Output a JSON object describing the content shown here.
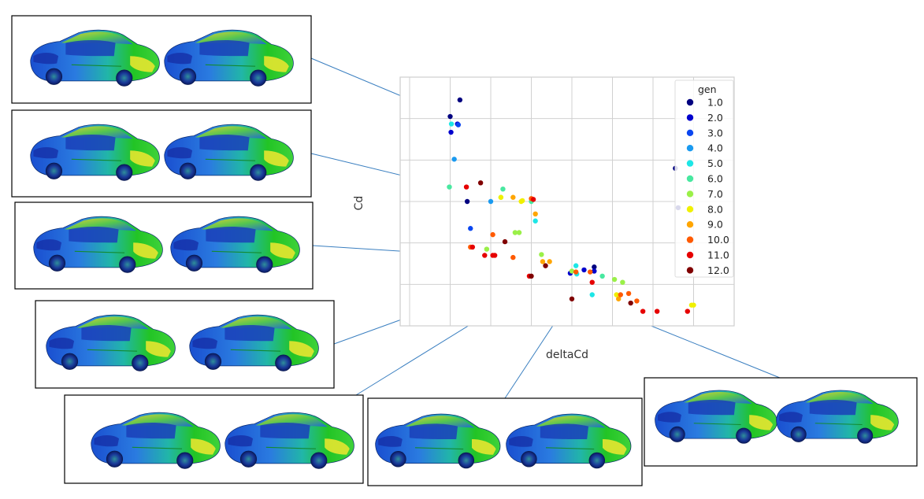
{
  "chart_data": {
    "type": "scatter",
    "title": "",
    "xlabel": "deltaCd",
    "ylabel": "Cd",
    "grid": true,
    "xlim": [
      0,
      8
    ],
    "ylim": [
      0,
      6
    ],
    "xticks_labeled": false,
    "yticks_labeled": false,
    "legend": {
      "title": "gen",
      "placement": "top-right",
      "entries": [
        {
          "label": "1.0",
          "color": "#000080"
        },
        {
          "label": "2.0",
          "color": "#0000cd"
        },
        {
          "label": "3.0",
          "color": "#0a46f0"
        },
        {
          "label": "4.0",
          "color": "#1a9af0"
        },
        {
          "label": "5.0",
          "color": "#1de6e6"
        },
        {
          "label": "6.0",
          "color": "#48e8a0"
        },
        {
          "label": "7.0",
          "color": "#9af048"
        },
        {
          "label": "8.0",
          "color": "#f0f000"
        },
        {
          "label": "9.0",
          "color": "#ffa500"
        },
        {
          "label": "10.0",
          "color": "#ff5a00"
        },
        {
          "label": "11.0",
          "color": "#e60000"
        },
        {
          "label": "12.0",
          "color": "#800000"
        }
      ]
    },
    "series": [
      {
        "name": "1.0",
        "points": [
          [
            1.24,
            5.45
          ],
          [
            1.0,
            5.05
          ],
          [
            6.55,
            3.8
          ],
          [
            6.62,
            2.85
          ],
          [
            1.42,
            3.0
          ],
          [
            4.55,
            1.42
          ]
        ]
      },
      {
        "name": "2.0",
        "points": [
          [
            1.18,
            4.87
          ],
          [
            1.02,
            4.67
          ],
          [
            3.96,
            1.27
          ],
          [
            4.3,
            1.35
          ],
          [
            4.55,
            1.32
          ]
        ]
      },
      {
        "name": "3.0",
        "points": [
          [
            1.2,
            4.85
          ],
          [
            1.5,
            2.35
          ]
        ]
      },
      {
        "name": "4.0",
        "points": [
          [
            1.1,
            4.02
          ],
          [
            2.0,
            3.0
          ]
        ]
      },
      {
        "name": "5.0",
        "points": [
          [
            1.03,
            4.87
          ],
          [
            3.1,
            2.53
          ],
          [
            4.1,
            1.45
          ],
          [
            4.12,
            1.25
          ],
          [
            4.5,
            0.75
          ]
        ]
      },
      {
        "name": "6.0",
        "points": [
          [
            0.98,
            3.35
          ],
          [
            2.3,
            3.3
          ],
          [
            3.0,
            3.0
          ],
          [
            4.75,
            1.2
          ]
        ]
      },
      {
        "name": "7.0",
        "points": [
          [
            2.25,
            3.1
          ],
          [
            2.7,
            2.25
          ],
          [
            1.9,
            1.85
          ],
          [
            2.6,
            2.25
          ],
          [
            3.25,
            1.72
          ],
          [
            4.0,
            1.32
          ],
          [
            5.05,
            1.12
          ],
          [
            5.25,
            1.05
          ]
        ]
      },
      {
        "name": "8.0",
        "points": [
          [
            2.25,
            3.1
          ],
          [
            2.75,
            3.0
          ],
          [
            2.78,
            3.02
          ],
          [
            5.1,
            0.75
          ],
          [
            6.95,
            0.5
          ],
          [
            7.0,
            0.5
          ]
        ]
      },
      {
        "name": "9.0",
        "points": [
          [
            2.55,
            3.1
          ],
          [
            3.1,
            2.7
          ],
          [
            3.45,
            1.55
          ],
          [
            3.28,
            1.55
          ],
          [
            5.15,
            0.65
          ]
        ]
      },
      {
        "name": "10.0",
        "points": [
          [
            3.0,
            3.07
          ],
          [
            2.05,
            2.2
          ],
          [
            1.5,
            1.9
          ],
          [
            2.55,
            1.65
          ],
          [
            4.1,
            1.3
          ],
          [
            4.45,
            1.3
          ],
          [
            5.2,
            0.75
          ],
          [
            5.4,
            0.78
          ],
          [
            5.6,
            0.6
          ]
        ]
      },
      {
        "name": "11.0",
        "points": [
          [
            3.05,
            3.05
          ],
          [
            1.4,
            3.35
          ],
          [
            1.55,
            1.9
          ],
          [
            2.05,
            1.7
          ],
          [
            1.85,
            1.7
          ],
          [
            2.1,
            1.7
          ],
          [
            2.95,
            1.2
          ],
          [
            4.5,
            1.05
          ],
          [
            5.75,
            0.35
          ],
          [
            6.1,
            0.35
          ],
          [
            6.85,
            0.35
          ]
        ]
      },
      {
        "name": "12.0",
        "points": [
          [
            1.75,
            3.45
          ],
          [
            3.35,
            1.45
          ],
          [
            2.35,
            2.03
          ],
          [
            3.0,
            1.2
          ],
          [
            4.0,
            0.65
          ],
          [
            5.45,
            0.55
          ]
        ]
      }
    ],
    "callouts": [
      {
        "panel": 0,
        "point": [
          1.0,
          5.05
        ]
      },
      {
        "panel": 1,
        "point": [
          0.98,
          3.35
        ]
      },
      {
        "panel": 2,
        "point": [
          1.4,
          1.7
        ]
      },
      {
        "panel": 3,
        "point": [
          2.75,
          1.2
        ]
      },
      {
        "panel": 4,
        "point": [
          3.1,
          1.0
        ]
      },
      {
        "panel": 5,
        "point": [
          4.0,
          0.7
        ]
      },
      {
        "panel": 6,
        "point": [
          5.7,
          0.1
        ]
      }
    ],
    "side_images": [
      {
        "description_icon": "car-pressure-render"
      },
      {
        "description_icon": "car-pressure-render"
      },
      {
        "description_icon": "car-pressure-render"
      },
      {
        "description_icon": "car-pressure-render"
      },
      {
        "description_icon": "car-pressure-render"
      },
      {
        "description_icon": "car-pressure-render"
      },
      {
        "description_icon": "car-pressure-render"
      }
    ],
    "colors": {
      "grid": "#d0d0d0",
      "callout_line": "#3a7fc0"
    }
  }
}
